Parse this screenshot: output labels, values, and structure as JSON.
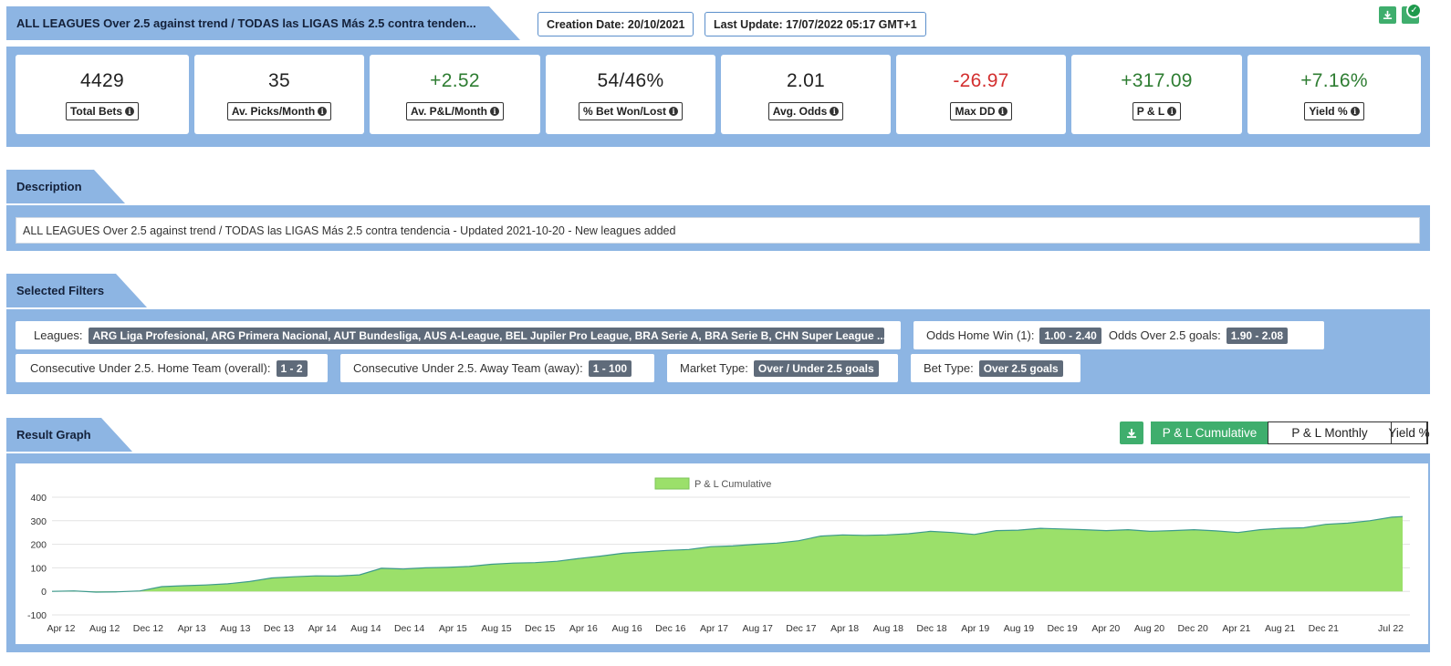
{
  "header": {
    "title": "ALL LEAGUES Over 2.5 against trend / TODAS las LIGAS Más 2.5 contra tenden...",
    "creation_date": "Creation Date: 20/10/2021",
    "last_update": "Last Update: 17/07/2022 05:17 GMT+1",
    "download_icon": "download-icon",
    "check_icon": "check-icon"
  },
  "stats": [
    {
      "value": "4429",
      "label": "Total Bets",
      "color": "#222222"
    },
    {
      "value": "35",
      "label": "Av. Picks/Month",
      "color": "#222222"
    },
    {
      "value": "+2.52",
      "label": "Av. P&L/Month",
      "color": "#2e7d32"
    },
    {
      "value": "54/46%",
      "label": "% Bet Won/Lost",
      "color": "#222222"
    },
    {
      "value": "2.01",
      "label": "Avg. Odds",
      "color": "#222222"
    },
    {
      "value": "-26.97",
      "label": "Max DD",
      "color": "#d32f2f"
    },
    {
      "value": "+317.09",
      "label": "P & L",
      "color": "#2e7d32"
    },
    {
      "value": "+7.16%",
      "label": "Yield %",
      "color": "#2e7d32"
    }
  ],
  "description": {
    "heading": "Description",
    "text": "ALL LEAGUES Over 2.5 against trend / TODAS las LIGAS Más 2.5 contra tendencia - Updated 2021-10-20 - New leagues added"
  },
  "filters": {
    "heading": "Selected Filters",
    "leagues_label": "Leagues:",
    "leagues_value": "ARG Liga Profesional, ARG Primera Nacional, AUT Bundesliga, AUS A-League, BEL Jupiler Pro League, BRA Serie A, BRA Serie B, CHN Super League ...",
    "odds_home_label": "Odds Home Win (1):",
    "odds_home_value": "1.00 - 2.40",
    "odds_over_label": "Odds Over 2.5 goals:",
    "odds_over_value": "1.90 - 2.08",
    "cons_home_label": "Consecutive Under 2.5. Home Team (overall):",
    "cons_home_value": "1 - 2",
    "cons_away_label": "Consecutive Under 2.5. Away Team (away):",
    "cons_away_value": "1 - 100",
    "market_label": "Market Type:",
    "market_value": "Over / Under 2.5 goals",
    "bet_label": "Bet Type:",
    "bet_value": "Over 2.5 goals"
  },
  "graph": {
    "heading": "Result Graph",
    "toggles": [
      "P & L Cumulative",
      "P & L Monthly",
      "Yield %"
    ],
    "active_toggle": 0,
    "download_icon": "download-icon"
  },
  "chart_data": {
    "type": "area",
    "title": "",
    "legend": [
      "P & L Cumulative"
    ],
    "legend_position": "top-center",
    "xlabel": "",
    "ylabel": "",
    "ylim": [
      -100,
      400
    ],
    "yticks": [
      -100,
      0,
      100,
      200,
      300,
      400
    ],
    "grid": true,
    "fill_color": "#9be06a",
    "line_color": "#3c9a8c",
    "x_tick_labels": [
      "Apr 12",
      "Aug 12",
      "Dec 12",
      "Apr 13",
      "Aug 13",
      "Dec 13",
      "Apr 14",
      "Aug 14",
      "Dec 14",
      "Apr 15",
      "Aug 15",
      "Dec 15",
      "Apr 16",
      "Aug 16",
      "Dec 16",
      "Apr 17",
      "Aug 17",
      "Dec 17",
      "Apr 18",
      "Aug 18",
      "Dec 18",
      "Apr 19",
      "Aug 19",
      "Dec 19",
      "Apr 20",
      "Aug 20",
      "Dec 20",
      "Apr 21",
      "Aug 21",
      "Dec 21",
      "Jul 22"
    ],
    "series": [
      {
        "name": "P & L Cumulative",
        "x": [
          "2012-04",
          "2012-06",
          "2012-08",
          "2012-10",
          "2012-12",
          "2013-02",
          "2013-04",
          "2013-06",
          "2013-08",
          "2013-10",
          "2013-12",
          "2014-02",
          "2014-04",
          "2014-06",
          "2014-08",
          "2014-10",
          "2014-12",
          "2015-02",
          "2015-04",
          "2015-06",
          "2015-08",
          "2015-10",
          "2015-12",
          "2016-02",
          "2016-04",
          "2016-06",
          "2016-08",
          "2016-10",
          "2016-12",
          "2017-02",
          "2017-04",
          "2017-06",
          "2017-08",
          "2017-10",
          "2017-12",
          "2018-02",
          "2018-04",
          "2018-06",
          "2018-08",
          "2018-10",
          "2018-12",
          "2019-02",
          "2019-04",
          "2019-06",
          "2019-08",
          "2019-10",
          "2019-12",
          "2020-02",
          "2020-04",
          "2020-06",
          "2020-08",
          "2020-10",
          "2020-12",
          "2021-02",
          "2021-04",
          "2021-06",
          "2021-08",
          "2021-10",
          "2021-12",
          "2022-02",
          "2022-04",
          "2022-06",
          "2022-07"
        ],
        "values": [
          0,
          2,
          -3,
          -2,
          2,
          20,
          24,
          27,
          32,
          42,
          57,
          62,
          66,
          65,
          70,
          98,
          95,
          100,
          102,
          106,
          115,
          120,
          122,
          128,
          140,
          150,
          162,
          168,
          174,
          178,
          190,
          193,
          200,
          205,
          215,
          235,
          240,
          238,
          240,
          245,
          255,
          250,
          242,
          258,
          260,
          268,
          265,
          262,
          258,
          262,
          255,
          258,
          262,
          257,
          250,
          262,
          268,
          270,
          285,
          290,
          300,
          315,
          318
        ]
      }
    ]
  }
}
